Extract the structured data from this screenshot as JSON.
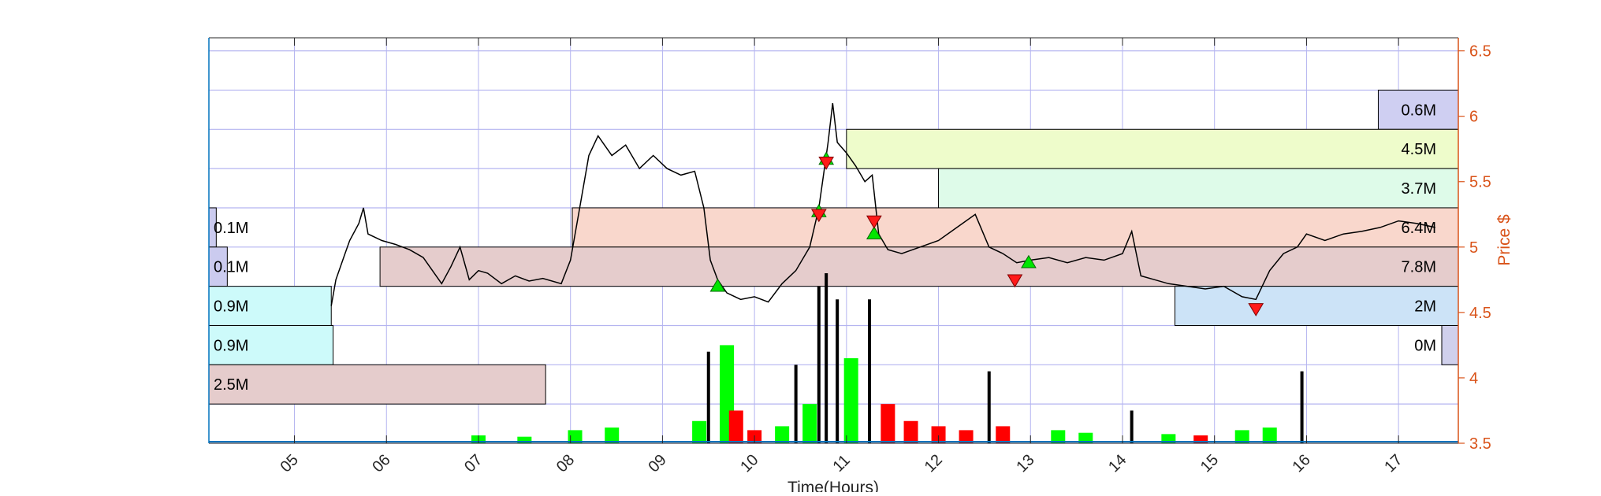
{
  "colors": {
    "grid": "#b4b4f0",
    "left_axis": "#0072BD",
    "right_axis": "#D95319",
    "up_volume": "#00ff00",
    "down_volume": "#ff0000",
    "neutral_volume": "#000000",
    "price_line": "#000000",
    "buy_marker": "#00e600",
    "sell_marker": "#ff1a1a"
  },
  "chart_data": {
    "type": "line",
    "title": "",
    "xlabel": "Time(Hours)",
    "ylabel": "Price $",
    "xlim": [
      4.07,
      17.65
    ],
    "ylim": [
      3.5,
      6.6
    ],
    "x_ticks": [
      5,
      6,
      7,
      8,
      9,
      10,
      11,
      12,
      13,
      14,
      15,
      16,
      17
    ],
    "x_tick_labels": [
      "05",
      "06",
      "07",
      "08",
      "09",
      "10",
      "11",
      "12",
      "13",
      "14",
      "15",
      "16",
      "17"
    ],
    "y_ticks": [
      3.5,
      4,
      4.5,
      5,
      5.5,
      6,
      6.5
    ],
    "y_tick_labels": [
      "3.5",
      "4",
      "4.5",
      "5",
      "5.5",
      "6",
      "6.5"
    ],
    "grid": true,
    "horizontal_grid_levels": [
      3.5,
      3.8,
      4.1,
      4.4,
      4.7,
      5.0,
      5.3,
      5.6,
      5.9,
      6.2,
      6.5
    ],
    "price_series": [
      [
        5.4,
        4.55
      ],
      [
        5.45,
        4.75
      ],
      [
        5.55,
        4.95
      ],
      [
        5.6,
        5.05
      ],
      [
        5.7,
        5.18
      ],
      [
        5.75,
        5.3
      ],
      [
        5.8,
        5.1
      ],
      [
        5.95,
        5.05
      ],
      [
        6.1,
        5.02
      ],
      [
        6.25,
        4.98
      ],
      [
        6.4,
        4.92
      ],
      [
        6.5,
        4.82
      ],
      [
        6.6,
        4.72
      ],
      [
        6.7,
        4.85
      ],
      [
        6.8,
        5.0
      ],
      [
        6.9,
        4.75
      ],
      [
        7.0,
        4.82
      ],
      [
        7.1,
        4.8
      ],
      [
        7.25,
        4.72
      ],
      [
        7.4,
        4.78
      ],
      [
        7.55,
        4.74
      ],
      [
        7.7,
        4.76
      ],
      [
        7.9,
        4.72
      ],
      [
        8.0,
        4.9
      ],
      [
        8.1,
        5.3
      ],
      [
        8.2,
        5.7
      ],
      [
        8.3,
        5.85
      ],
      [
        8.45,
        5.7
      ],
      [
        8.6,
        5.78
      ],
      [
        8.75,
        5.6
      ],
      [
        8.9,
        5.7
      ],
      [
        9.05,
        5.6
      ],
      [
        9.2,
        5.55
      ],
      [
        9.35,
        5.58
      ],
      [
        9.45,
        5.3
      ],
      [
        9.52,
        4.9
      ],
      [
        9.6,
        4.75
      ],
      [
        9.7,
        4.65
      ],
      [
        9.85,
        4.6
      ],
      [
        10.0,
        4.62
      ],
      [
        10.15,
        4.58
      ],
      [
        10.3,
        4.72
      ],
      [
        10.45,
        4.82
      ],
      [
        10.6,
        5.0
      ],
      [
        10.7,
        5.3
      ],
      [
        10.8,
        5.8
      ],
      [
        10.85,
        6.1
      ],
      [
        10.9,
        5.8
      ],
      [
        11.0,
        5.72
      ],
      [
        11.1,
        5.62
      ],
      [
        11.2,
        5.5
      ],
      [
        11.28,
        5.55
      ],
      [
        11.35,
        5.1
      ],
      [
        11.45,
        4.98
      ],
      [
        11.6,
        4.95
      ],
      [
        11.8,
        5.0
      ],
      [
        12.0,
        5.05
      ],
      [
        12.2,
        5.15
      ],
      [
        12.4,
        5.25
      ],
      [
        12.55,
        5.0
      ],
      [
        12.7,
        4.95
      ],
      [
        12.85,
        4.88
      ],
      [
        13.0,
        4.9
      ],
      [
        13.2,
        4.92
      ],
      [
        13.4,
        4.88
      ],
      [
        13.6,
        4.92
      ],
      [
        13.8,
        4.9
      ],
      [
        14.0,
        4.95
      ],
      [
        14.1,
        5.12
      ],
      [
        14.2,
        4.78
      ],
      [
        14.35,
        4.75
      ],
      [
        14.5,
        4.72
      ],
      [
        14.7,
        4.7
      ],
      [
        14.9,
        4.68
      ],
      [
        15.1,
        4.7
      ],
      [
        15.3,
        4.62
      ],
      [
        15.45,
        4.6
      ],
      [
        15.6,
        4.82
      ],
      [
        15.75,
        4.95
      ],
      [
        15.9,
        5.0
      ],
      [
        16.0,
        5.1
      ],
      [
        16.2,
        5.05
      ],
      [
        16.4,
        5.1
      ],
      [
        16.6,
        5.12
      ],
      [
        16.8,
        5.15
      ],
      [
        17.0,
        5.2
      ],
      [
        17.2,
        5.18
      ],
      [
        17.4,
        5.15
      ]
    ],
    "buy_signals": [
      [
        9.6,
        4.7
      ],
      [
        10.7,
        5.27
      ],
      [
        10.78,
        5.67
      ],
      [
        11.3,
        5.1
      ],
      [
        12.98,
        4.88
      ]
    ],
    "sell_signals": [
      [
        10.7,
        5.25
      ],
      [
        10.78,
        5.65
      ],
      [
        11.3,
        5.2
      ],
      [
        12.83,
        4.75
      ],
      [
        15.45,
        4.53
      ]
    ],
    "volume_profile_left": [
      {
        "low": 5.0,
        "high": 5.3,
        "right_x": 4.15,
        "label": "0.1M",
        "fill": "#cbcbef"
      },
      {
        "low": 4.7,
        "high": 5.0,
        "right_x": 4.27,
        "label": "0.1M",
        "fill": "#cbcbef"
      },
      {
        "low": 4.4,
        "high": 4.7,
        "right_x": 5.4,
        "label": "0.9M",
        "fill": "#cdfafa"
      },
      {
        "low": 4.1,
        "high": 4.4,
        "right_x": 5.42,
        "label": "0.9M",
        "fill": "#cdfafa"
      },
      {
        "low": 3.8,
        "high": 4.1,
        "right_x": 7.73,
        "label": "2.5M",
        "fill": "#e5cccc"
      }
    ],
    "volume_profile_right": [
      {
        "low": 5.9,
        "high": 6.2,
        "left_x": 16.78,
        "label": "0.6M",
        "fill": "#cfcff2"
      },
      {
        "low": 5.6,
        "high": 5.9,
        "left_x": 11.0,
        "label": "4.5M",
        "fill": "#eefccb"
      },
      {
        "low": 5.3,
        "high": 5.6,
        "left_x": 12.0,
        "label": "3.7M",
        "fill": "#defbe9"
      },
      {
        "low": 5.0,
        "high": 5.3,
        "left_x": 8.02,
        "label": "6.4M",
        "fill": "#f9d7cc"
      },
      {
        "low": 4.7,
        "high": 5.0,
        "left_x": 5.93,
        "label": "7.8M",
        "fill": "#e5cccc"
      },
      {
        "low": 4.4,
        "high": 4.7,
        "left_x": 14.57,
        "label": "2M",
        "fill": "#cce3f7"
      },
      {
        "low": 4.1,
        "high": 4.4,
        "left_x": 17.47,
        "label": "0M",
        "fill": "#d0d0ec"
      }
    ],
    "volume_bars": [
      [
        7.0,
        3.56,
        "green"
      ],
      [
        7.5,
        3.55,
        "green"
      ],
      [
        8.05,
        3.6,
        "green"
      ],
      [
        8.45,
        3.62,
        "green"
      ],
      [
        9.4,
        3.67,
        "green"
      ],
      [
        9.5,
        4.2,
        "black"
      ],
      [
        9.65,
        4.0,
        "black"
      ],
      [
        9.7,
        4.25,
        "green"
      ],
      [
        9.8,
        3.75,
        "red"
      ],
      [
        10.0,
        3.6,
        "red"
      ],
      [
        10.3,
        3.63,
        "green"
      ],
      [
        10.45,
        4.1,
        "black"
      ],
      [
        10.6,
        3.8,
        "green"
      ],
      [
        10.7,
        4.7,
        "black"
      ],
      [
        10.78,
        4.8,
        "black"
      ],
      [
        10.9,
        4.6,
        "black"
      ],
      [
        11.05,
        4.15,
        "green"
      ],
      [
        11.25,
        4.6,
        "black"
      ],
      [
        11.45,
        3.8,
        "red"
      ],
      [
        11.7,
        3.67,
        "red"
      ],
      [
        12.0,
        3.63,
        "red"
      ],
      [
        12.3,
        3.6,
        "red"
      ],
      [
        12.55,
        4.05,
        "black"
      ],
      [
        12.7,
        3.63,
        "red"
      ],
      [
        13.3,
        3.6,
        "green"
      ],
      [
        13.6,
        3.58,
        "green"
      ],
      [
        14.1,
        3.75,
        "black"
      ],
      [
        14.5,
        3.57,
        "green"
      ],
      [
        14.85,
        3.56,
        "red"
      ],
      [
        15.3,
        3.6,
        "green"
      ],
      [
        15.6,
        3.62,
        "green"
      ],
      [
        15.95,
        4.05,
        "black"
      ]
    ],
    "annotations": [
      "0.1M",
      "0.1M",
      "0.9M",
      "0.9M",
      "2.5M",
      "0.6M",
      "4.5M",
      "3.7M",
      "6.4M",
      "7.8M",
      "2M",
      "0M"
    ]
  }
}
